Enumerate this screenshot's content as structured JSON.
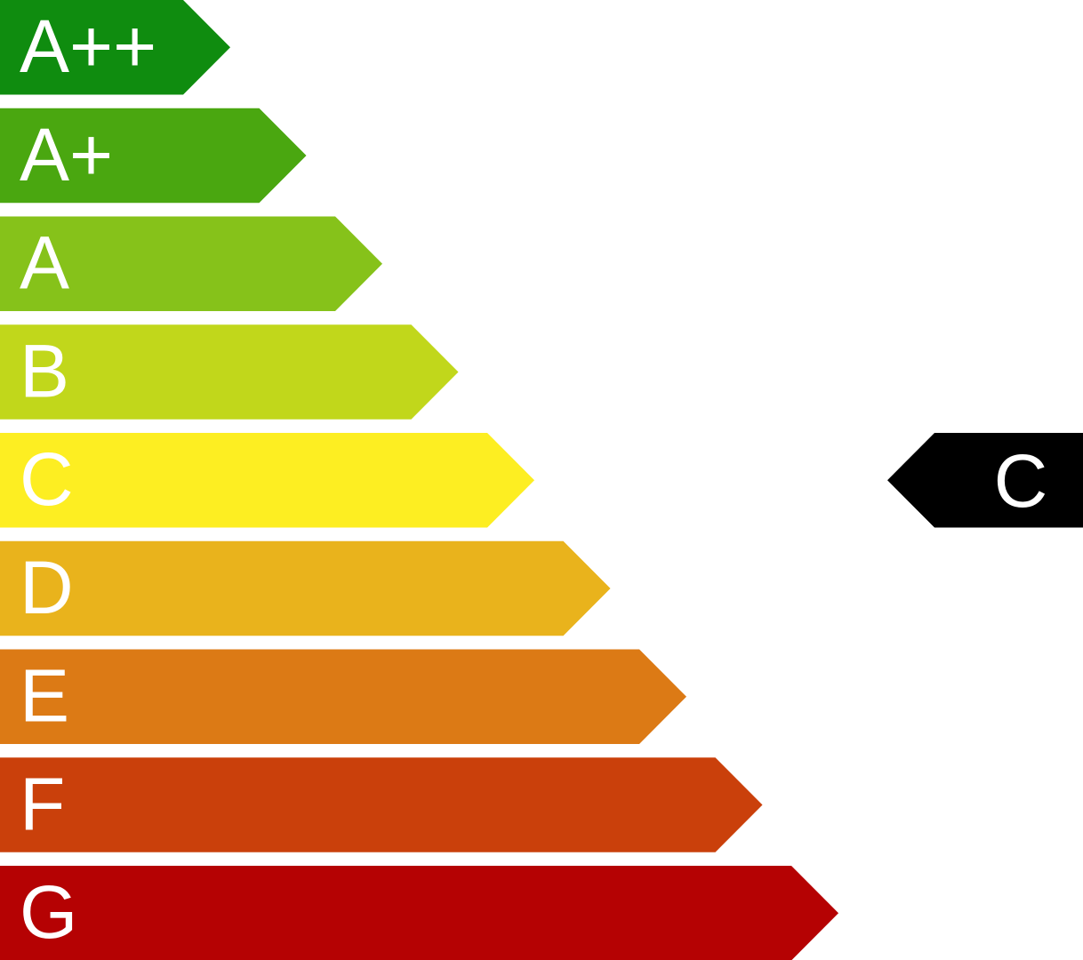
{
  "classes": [
    {
      "label": "A++",
      "color": "#0f8c0f"
    },
    {
      "label": "A+",
      "color": "#4aa710"
    },
    {
      "label": "A",
      "color": "#86c21a"
    },
    {
      "label": "B",
      "color": "#c1d71b"
    },
    {
      "label": "C",
      "color": "#fdee22"
    },
    {
      "label": "D",
      "color": "#e9b31c"
    },
    {
      "label": "E",
      "color": "#dc7a15"
    },
    {
      "label": "F",
      "color": "#ca400b"
    },
    {
      "label": "G",
      "color": "#b50203"
    }
  ],
  "rating": {
    "label": "C",
    "color": "#000000"
  }
}
